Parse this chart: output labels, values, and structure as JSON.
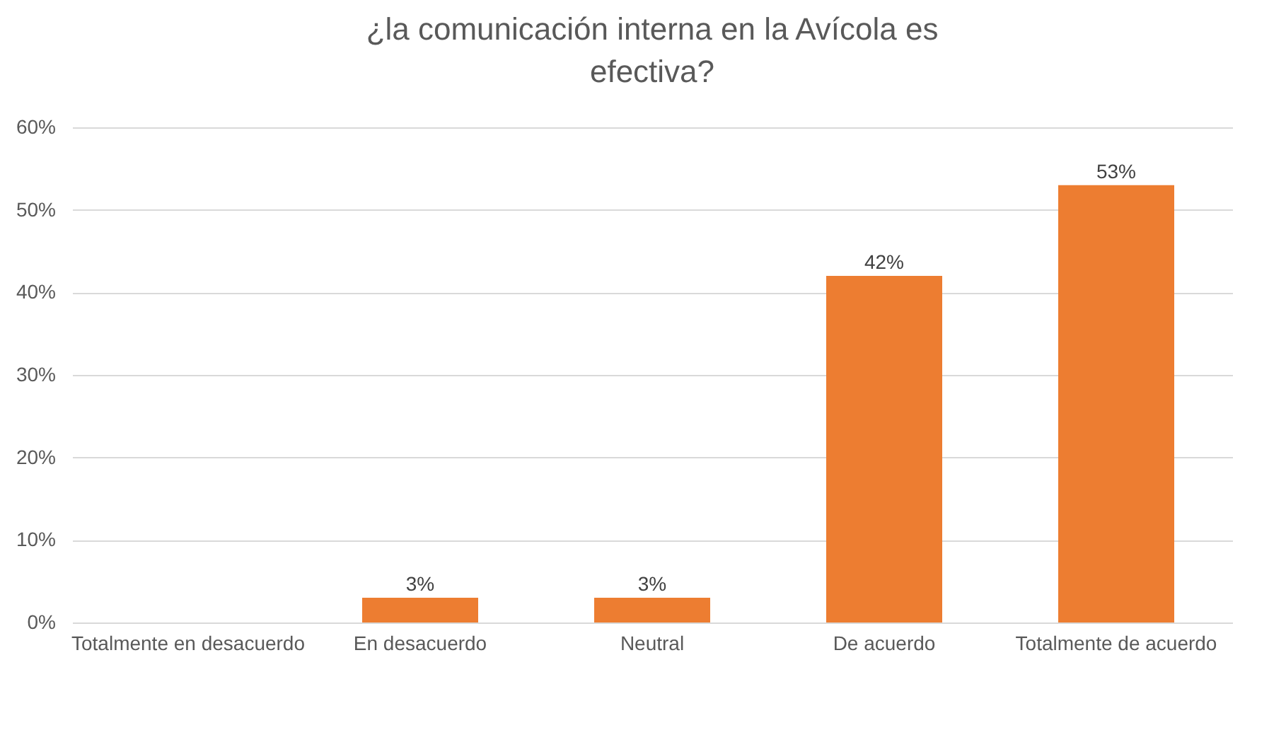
{
  "chart_data": {
    "type": "bar",
    "title": "¿la comunicación interna en la Avícola es efectiva?",
    "categories": [
      "Totalmente en desacuerdo",
      "En desacuerdo",
      "Neutral",
      "De acuerdo",
      "Totalmente de acuerdo"
    ],
    "values": [
      0,
      3,
      3,
      42,
      53
    ],
    "color": "#ed7d31",
    "value_labels": [
      null,
      "3%",
      "3%",
      "42%",
      "53%"
    ],
    "ylim": [
      0,
      60
    ],
    "yticks": [
      {
        "value": 0,
        "label": "0%"
      },
      {
        "value": 10,
        "label": "10%"
      },
      {
        "value": 20,
        "label": "20%"
      },
      {
        "value": 30,
        "label": "30%"
      },
      {
        "value": 40,
        "label": "40%"
      },
      {
        "value": 50,
        "label": "50%"
      },
      {
        "value": 60,
        "label": "60%"
      }
    ],
    "grid": "y"
  }
}
